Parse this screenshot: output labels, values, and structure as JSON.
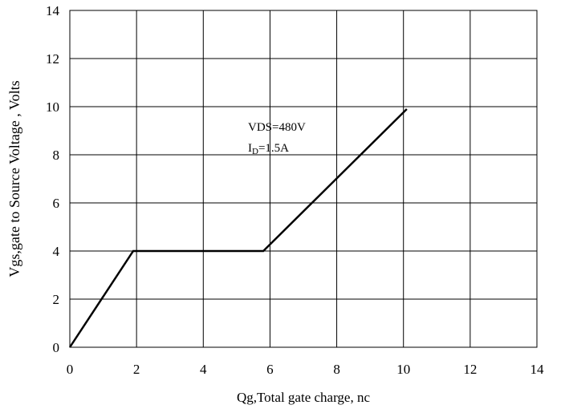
{
  "chart_data": {
    "type": "line",
    "title": "",
    "xlabel": "Qg,Total gate charge, nc",
    "ylabel": "Vgs,gate to Source Voltage , Volts",
    "xlim": [
      0,
      14
    ],
    "ylim": [
      0,
      14
    ],
    "x_ticks": [
      "0",
      "2",
      "4",
      "6",
      "8",
      "10",
      "12",
      "14"
    ],
    "y_ticks": [
      "0",
      "2",
      "4",
      "6",
      "8",
      "10",
      "12",
      "14"
    ],
    "grid": true,
    "legend": "none",
    "series": [
      {
        "x": [
          0,
          1.9,
          5.8,
          10.1
        ],
        "y": [
          0,
          4,
          4,
          9.9
        ]
      }
    ],
    "annotations": {
      "line1": "VDS=480V",
      "line2_main": "I",
      "line2_sub": "D",
      "line2_rest": "=1.5A"
    },
    "colors": {
      "line": "#000000",
      "grid": "#000000",
      "background": "#ffffff"
    }
  }
}
